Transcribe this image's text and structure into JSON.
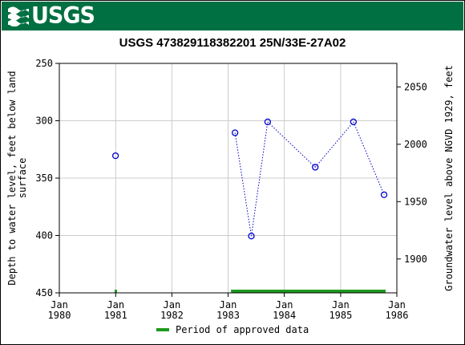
{
  "header": {
    "logo_text": "USGS",
    "banner_color": "#006f41"
  },
  "chart_data": {
    "type": "scatter",
    "title": "USGS 473829118382201 25N/33E-27A02",
    "ylabel_left": "Depth to water level, feet below land surface",
    "ylabel_left_lines": [
      "Depth to water level, feet below land",
      "surface"
    ],
    "ylabel_right": "Groundwater level above NGVD 1929, feet",
    "x_ticks": [
      {
        "date": "1980-01-01",
        "line1": "Jan",
        "line2": "1980"
      },
      {
        "date": "1981-01-01",
        "line1": "Jan",
        "line2": "1981"
      },
      {
        "date": "1982-01-01",
        "line1": "Jan",
        "line2": "1982"
      },
      {
        "date": "1983-01-01",
        "line1": "Jan",
        "line2": "1983"
      },
      {
        "date": "1984-01-01",
        "line1": "Jan",
        "line2": "1984"
      },
      {
        "date": "1985-01-01",
        "line1": "Jan",
        "line2": "1985"
      },
      {
        "date": "1986-01-01",
        "line1": "Jan",
        "line2": "1986"
      }
    ],
    "xlim": [
      "1980-01-01",
      "1986-01-01"
    ],
    "ylim_left": [
      450,
      250
    ],
    "yticks_left": [
      250,
      300,
      350,
      400,
      450
    ],
    "ylim_right": [
      1870.5,
      2070.5
    ],
    "yticks_right": [
      1900,
      1950,
      2000,
      2050
    ],
    "grid": true,
    "series": [
      {
        "marker": "open-circle",
        "color": "#0000cc",
        "points": [
          {
            "date": "1980-12-31",
            "value": 330.5,
            "connected": false
          },
          {
            "date": "1983-02-15",
            "value": 310.5,
            "connected": true
          },
          {
            "date": "1983-06-01",
            "value": 400.5,
            "connected": true
          },
          {
            "date": "1983-09-15",
            "value": 301.0,
            "connected": true
          },
          {
            "date": "1984-07-20",
            "value": 340.5,
            "connected": true
          },
          {
            "date": "1985-03-25",
            "value": 301.0,
            "connected": true
          },
          {
            "date": "1985-10-10",
            "value": 364.5,
            "connected": true
          }
        ]
      }
    ],
    "approved_periods": [
      {
        "start": "1980-12-25",
        "end": "1981-01-05"
      },
      {
        "start": "1983-01-20",
        "end": "1985-10-20"
      }
    ],
    "approved_color": "#1e9a1e",
    "legend": {
      "label": "Period of approved data",
      "placement": "bottom-center"
    }
  }
}
